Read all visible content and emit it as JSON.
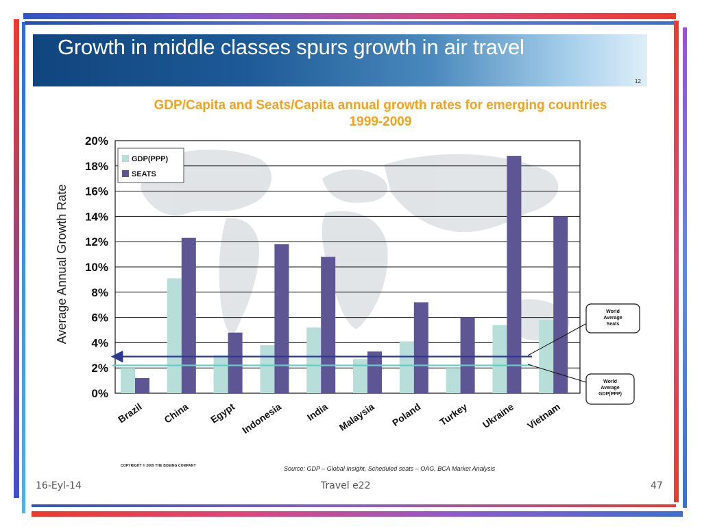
{
  "slide": {
    "title": "Growth in middle classes spurs growth in air travel",
    "slide_mini_number": "12",
    "copyright": "COPYRIGHT © 2009 THE BOEING COMPANY",
    "source": "Source: GDP – Global Insight, Scheduled seats – OAG, BCA Market Analysis",
    "footer_date": "16-Eyl-14",
    "footer_center": "Travel e22",
    "footer_page": "47"
  },
  "colors": {
    "gdp": "#b7ded9",
    "seats": "#5e5595",
    "title_orange": "#f7a21c",
    "avg_seats_line": "#2b3a8f",
    "avg_gdp_line": "#5fd0c8"
  },
  "chart_data": {
    "type": "bar",
    "title": "GDP/Capita and Seats/Capita annual growth rates for emerging countries 1999-2009",
    "ylabel": "Average Annual Growth Rate",
    "xlabel": "",
    "ylim": [
      0,
      20
    ],
    "yticks": [
      "0%",
      "2%",
      "4%",
      "6%",
      "8%",
      "10%",
      "12%",
      "14%",
      "16%",
      "18%",
      "20%"
    ],
    "grid": true,
    "legend_position": "top-left",
    "categories": [
      "Brazil",
      "China",
      "Egypt",
      "Indonesia",
      "India",
      "Malaysia",
      "Poland",
      "Turkey",
      "Ukraine",
      "Vietnam"
    ],
    "series": [
      {
        "name": "GDP(PPP)",
        "values": [
          2.0,
          9.1,
          3.0,
          3.8,
          5.2,
          2.7,
          4.1,
          2.0,
          5.4,
          5.8
        ]
      },
      {
        "name": "SEATS",
        "values": [
          1.2,
          12.3,
          4.8,
          11.8,
          10.8,
          3.3,
          7.2,
          6.0,
          18.8,
          14.0
        ]
      }
    ],
    "reference_lines": [
      {
        "label": "World Average Seats",
        "value": 2.9
      },
      {
        "label": "World Average GDP(PPP)",
        "value": 2.2
      }
    ]
  }
}
